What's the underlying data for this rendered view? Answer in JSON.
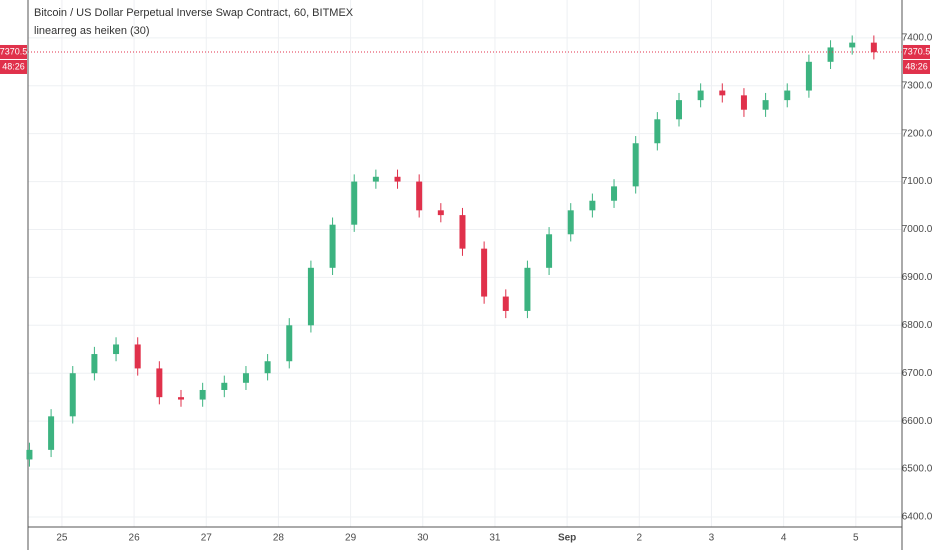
{
  "chart_data": {
    "type": "candlestick",
    "title": "Bitcoin / US Dollar Perpetual Inverse Swap Contract, 60, BITMEX",
    "subtitle": "linearreg as heiken (30)",
    "last_price": 7370.5,
    "countdown": "48:26",
    "up_color": "#3cb380",
    "down_color": "#e0314b",
    "grid": true,
    "x": [
      24.55,
      24.85,
      25.15,
      25.45,
      25.75,
      26.05,
      26.35,
      26.65,
      26.95,
      27.25,
      27.55,
      27.85,
      28.15,
      28.45,
      28.75,
      29.05,
      29.35,
      29.65,
      29.95,
      30.25,
      30.55,
      30.85,
      31.15,
      31.45,
      31.75,
      32.05,
      32.35,
      32.65,
      32.95,
      33.25,
      33.55,
      33.85,
      34.15,
      34.45,
      34.75,
      35.05,
      35.35,
      35.65,
      35.95,
      36.25
    ],
    "open": [
      6520,
      6540,
      6610,
      6700,
      6740,
      6760,
      6710,
      6650,
      6645,
      6665,
      6680,
      6700,
      6725,
      6800,
      6920,
      7010,
      7100,
      7110,
      7100,
      7040,
      7030,
      6960,
      6860,
      6830,
      6920,
      6990,
      7040,
      7060,
      7090,
      7180,
      7230,
      7270,
      7290,
      7280,
      7250,
      7270,
      7290,
      7350,
      7380,
      7390
    ],
    "high": [
      6555,
      6625,
      6715,
      6755,
      6775,
      6775,
      6725,
      6665,
      6680,
      6695,
      6715,
      6740,
      6815,
      6935,
      7025,
      7115,
      7125,
      7125,
      7115,
      7055,
      7045,
      6975,
      6875,
      6935,
      7005,
      7055,
      7075,
      7105,
      7195,
      7245,
      7285,
      7305,
      7305,
      7295,
      7285,
      7305,
      7365,
      7395,
      7405,
      7405
    ],
    "low": [
      6505,
      6525,
      6595,
      6685,
      6725,
      6695,
      6635,
      6630,
      6630,
      6650,
      6665,
      6685,
      6710,
      6785,
      6905,
      6995,
      7085,
      7085,
      7025,
      7015,
      6945,
      6845,
      6815,
      6815,
      6905,
      6975,
      7025,
      7045,
      7075,
      7165,
      7215,
      7255,
      7265,
      7235,
      7235,
      7255,
      7275,
      7335,
      7365,
      7355
    ],
    "close": [
      6540,
      6610,
      6700,
      6740,
      6760,
      6710,
      6650,
      6645,
      6665,
      6680,
      6700,
      6725,
      6800,
      6920,
      7010,
      7100,
      7110,
      7100,
      7040,
      7030,
      6960,
      6860,
      6830,
      6920,
      6990,
      7040,
      7060,
      7090,
      7180,
      7230,
      7270,
      7290,
      7280,
      7250,
      7270,
      7290,
      7350,
      7380,
      7390,
      7370
    ],
    "xlim": [
      24.53,
      36.64
    ],
    "xticks": [
      25,
      26,
      27,
      28,
      29,
      30,
      31,
      {
        "value": 32,
        "label": "Sep"
      },
      {
        "value": 33,
        "label": "2"
      },
      {
        "value": 34,
        "label": "3"
      },
      {
        "value": 35,
        "label": "4"
      },
      {
        "value": 36,
        "label": "5"
      }
    ],
    "ylim": [
      6379,
      7479
    ],
    "yticks": [
      {
        "value": 6400,
        "label": "6400.0"
      },
      {
        "value": 6500,
        "label": "6500.0"
      },
      {
        "value": 6600,
        "label": "6600.0"
      },
      {
        "value": 6700,
        "label": "6700.0"
      },
      {
        "value": 6800,
        "label": "6800.0"
      },
      {
        "value": 6900,
        "label": "6900.0"
      },
      {
        "value": 7000,
        "label": "7000.0"
      },
      {
        "value": 7100,
        "label": "7100.0"
      },
      {
        "value": 7200,
        "label": "7200.0"
      },
      {
        "value": 7300,
        "label": "7300.0"
      },
      {
        "value": 7400,
        "label": "7400.0"
      }
    ]
  }
}
